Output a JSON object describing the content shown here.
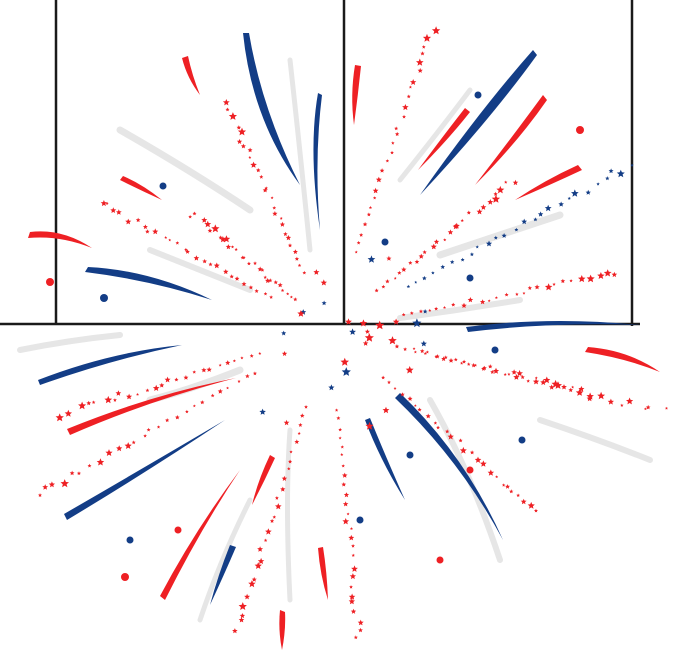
{
  "scene": {
    "description_label": "",
    "colors": {
      "background": "#ffffff",
      "red": "#ee2024",
      "blue": "#133d86",
      "grey": "#e8e8e8",
      "frame": "#1a1a1a"
    },
    "icon": "firework-burst-icon"
  }
}
